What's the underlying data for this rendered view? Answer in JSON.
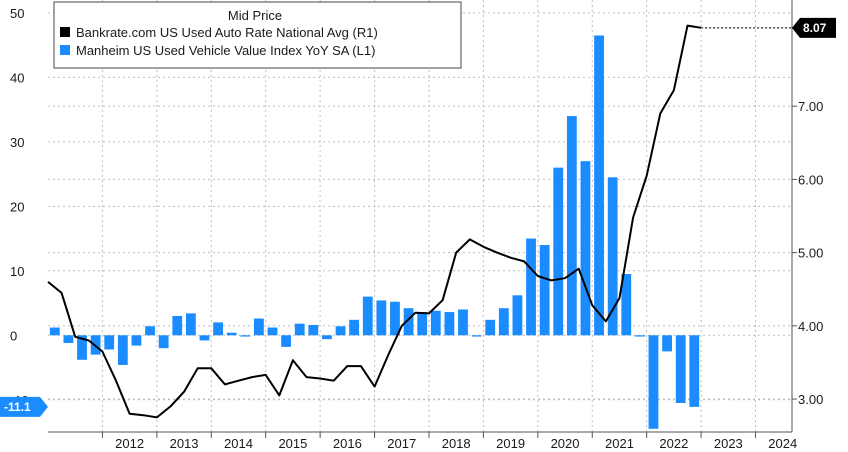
{
  "chart_data": {
    "type": "bar+line",
    "legend_title": "Mid Price",
    "legend_position": "top-left",
    "grid": true,
    "x_ticks": [
      "2012",
      "2013",
      "2014",
      "2015",
      "2016",
      "2017",
      "2018",
      "2019",
      "2020",
      "2021",
      "2022",
      "2023",
      "2024"
    ],
    "x_range": [
      2011.0,
      2024.67
    ],
    "left_axis": {
      "range": [
        -15,
        52
      ],
      "ticks": [
        "50",
        "40",
        "30",
        "20",
        "10",
        "0",
        "-10"
      ]
    },
    "right_axis": {
      "range": [
        2.55,
        8.45
      ],
      "ticks": [
        "7.00",
        "6.00",
        "5.00",
        "4.00",
        "3.00"
      ]
    },
    "series": [
      {
        "name": "Manheim US Used Vehicle Value Index YoY SA  (L1)",
        "type": "bar",
        "axis": "left",
        "color": "#1a8cff",
        "points": [
          [
            2011.125,
            1.2
          ],
          [
            2011.375,
            -1.2
          ],
          [
            2011.625,
            -3.8
          ],
          [
            2011.875,
            -3.0
          ],
          [
            2012.125,
            -2.2
          ],
          [
            2012.375,
            -4.6
          ],
          [
            2012.625,
            -1.6
          ],
          [
            2012.875,
            1.4
          ],
          [
            2013.125,
            -2.0
          ],
          [
            2013.375,
            3.0
          ],
          [
            2013.625,
            3.4
          ],
          [
            2013.875,
            -0.8
          ],
          [
            2014.125,
            2.0
          ],
          [
            2014.375,
            0.4
          ],
          [
            2014.625,
            -0.2
          ],
          [
            2014.875,
            2.6
          ],
          [
            2015.125,
            1.2
          ],
          [
            2015.375,
            -1.8
          ],
          [
            2015.625,
            1.8
          ],
          [
            2015.875,
            1.6
          ],
          [
            2016.125,
            -0.6
          ],
          [
            2016.375,
            1.4
          ],
          [
            2016.625,
            2.4
          ],
          [
            2016.875,
            6.0
          ],
          [
            2017.125,
            5.4
          ],
          [
            2017.375,
            5.2
          ],
          [
            2017.625,
            4.2
          ],
          [
            2017.875,
            3.6
          ],
          [
            2018.125,
            3.8
          ],
          [
            2018.375,
            3.6
          ],
          [
            2018.625,
            4.0
          ],
          [
            2018.875,
            -0.2
          ],
          [
            2019.125,
            2.4
          ],
          [
            2019.375,
            4.2
          ],
          [
            2019.625,
            6.2
          ],
          [
            2019.875,
            15.0
          ],
          [
            2020.125,
            14.0
          ],
          [
            2020.375,
            26.0
          ],
          [
            2020.625,
            34.0
          ],
          [
            2020.875,
            27.0
          ],
          [
            2021.125,
            46.5
          ],
          [
            2021.375,
            24.5
          ],
          [
            2021.625,
            9.5
          ],
          [
            2021.875,
            -0.2
          ],
          [
            2022.125,
            -14.5
          ],
          [
            2022.375,
            -2.5
          ],
          [
            2022.625,
            -10.5
          ],
          [
            2022.875,
            -11.1
          ]
        ],
        "last_value_label": "-11.1"
      },
      {
        "name": "Bankrate.com US Used Auto Rate National Avg  (R1)",
        "type": "line",
        "axis": "right",
        "color": "#000000",
        "points": [
          [
            2011.0,
            4.6
          ],
          [
            2011.25,
            4.45
          ],
          [
            2011.5,
            3.85
          ],
          [
            2011.75,
            3.8
          ],
          [
            2012.0,
            3.65
          ],
          [
            2012.25,
            3.25
          ],
          [
            2012.5,
            2.8
          ],
          [
            2012.75,
            2.78
          ],
          [
            2013.0,
            2.75
          ],
          [
            2013.25,
            2.9
          ],
          [
            2013.5,
            3.1
          ],
          [
            2013.75,
            3.42
          ],
          [
            2014.0,
            3.42
          ],
          [
            2014.25,
            3.2
          ],
          [
            2014.5,
            3.25
          ],
          [
            2014.75,
            3.3
          ],
          [
            2015.0,
            3.33
          ],
          [
            2015.25,
            3.05
          ],
          [
            2015.5,
            3.53
          ],
          [
            2015.75,
            3.3
          ],
          [
            2016.0,
            3.28
          ],
          [
            2016.25,
            3.25
          ],
          [
            2016.5,
            3.45
          ],
          [
            2016.75,
            3.45
          ],
          [
            2017.0,
            3.17
          ],
          [
            2017.25,
            3.6
          ],
          [
            2017.5,
            4.0
          ],
          [
            2017.75,
            4.18
          ],
          [
            2018.0,
            4.17
          ],
          [
            2018.25,
            4.35
          ],
          [
            2018.5,
            5.0
          ],
          [
            2018.75,
            5.18
          ],
          [
            2019.0,
            5.08
          ],
          [
            2019.25,
            5.0
          ],
          [
            2019.5,
            4.93
          ],
          [
            2019.75,
            4.88
          ],
          [
            2020.0,
            4.68
          ],
          [
            2020.25,
            4.62
          ],
          [
            2020.5,
            4.65
          ],
          [
            2020.75,
            4.78
          ],
          [
            2021.0,
            4.28
          ],
          [
            2021.25,
            4.06
          ],
          [
            2021.5,
            4.38
          ],
          [
            2021.75,
            5.48
          ],
          [
            2022.0,
            6.05
          ],
          [
            2022.25,
            6.9
          ],
          [
            2022.5,
            7.22
          ],
          [
            2022.75,
            8.1
          ],
          [
            2023.0,
            8.07
          ]
        ],
        "last_value_label": "8.07"
      }
    ]
  }
}
